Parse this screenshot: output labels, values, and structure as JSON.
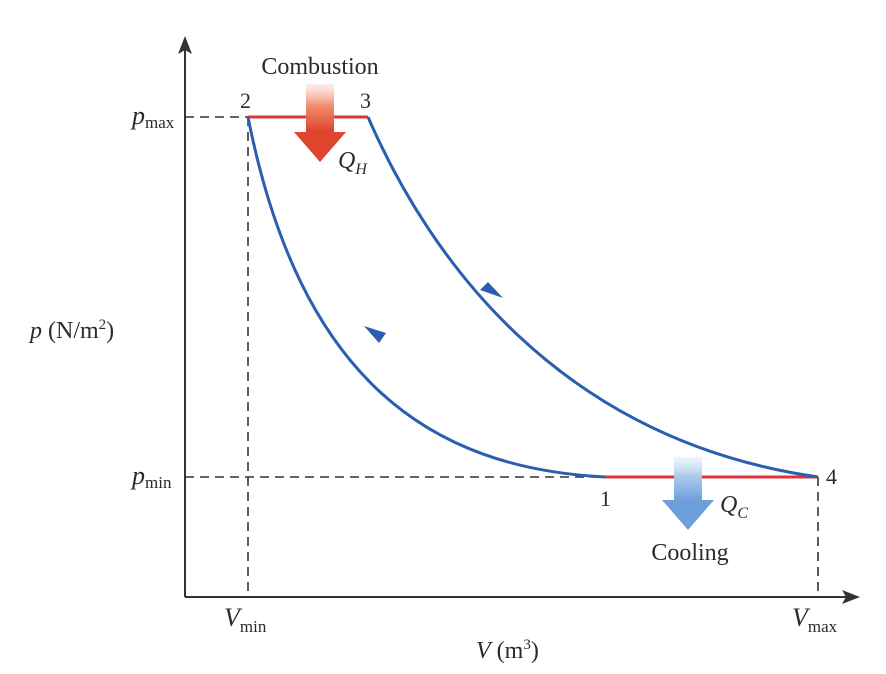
{
  "labels": {
    "combustion": "Combustion",
    "cooling": "Cooling",
    "qh_main": "Q",
    "qh_sub": "H",
    "qc_main": "Q",
    "qc_sub": "C",
    "point1": "1",
    "point2": "2",
    "point3": "3",
    "point4": "4",
    "pmax_main": "p",
    "pmax_sub": "max",
    "pmin_main": "p",
    "pmin_sub": "min",
    "vmin_main": "V",
    "vmin_sub": "min",
    "vmax_main": "V",
    "vmax_sub": "max",
    "yaxis_var": "p",
    "yaxis_unit": " (N/m",
    "yaxis_exp": "2",
    "yaxis_close": ")",
    "xaxis_var": "V",
    "xaxis_unit": " (m",
    "xaxis_exp": "3",
    "xaxis_close": ")"
  },
  "colors": {
    "curve": "#2a5fb0",
    "heat_line": "#e0323a",
    "heat_arrow_in": "#e0452f",
    "heat_arrow_out": "#7aa7dc",
    "axis": "#333333"
  }
}
